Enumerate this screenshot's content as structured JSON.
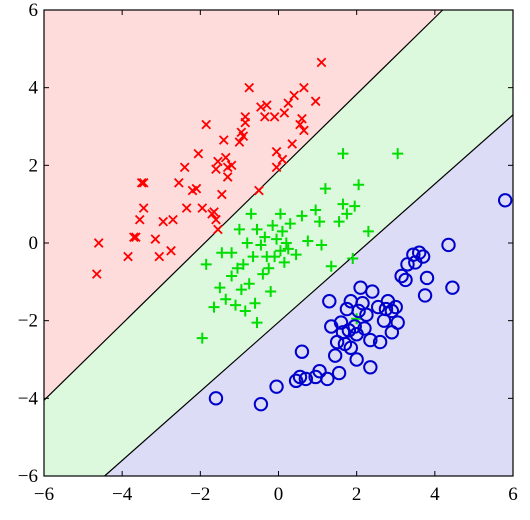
{
  "chart_data": {
    "type": "scatter",
    "title": "",
    "xlabel": "",
    "ylabel": "",
    "xlim": [
      -6,
      6
    ],
    "ylim": [
      -6,
      6
    ],
    "xticks": [
      "−6",
      "−4",
      "−2",
      "0",
      "2",
      "4",
      "6"
    ],
    "yticks": [
      "−6",
      "−4",
      "−2",
      "0",
      "2",
      "4",
      "6"
    ],
    "grid": false,
    "decision_boundaries": [
      {
        "x1": -6,
        "y1": -4.05,
        "x2": 4.2,
        "y2": 6
      },
      {
        "x1": -4.45,
        "y1": -6,
        "x2": 6,
        "y2": 3.3
      }
    ],
    "regions": [
      {
        "color": "#ffdcdc"
      },
      {
        "color": "#ddf9dd"
      },
      {
        "color": "#dcdcf7"
      }
    ],
    "series": [
      {
        "marker": "x",
        "color": "#ff0000",
        "points": [
          [
            -4.6,
            0.0
          ],
          [
            -4.65,
            -0.8
          ],
          [
            -3.85,
            -0.35
          ],
          [
            -3.7,
            0.15
          ],
          [
            -3.65,
            0.15
          ],
          [
            -3.55,
            0.6
          ],
          [
            -3.45,
            0.9
          ],
          [
            -3.5,
            1.55
          ],
          [
            -3.45,
            1.55
          ],
          [
            -3.15,
            0.1
          ],
          [
            -3.05,
            -0.35
          ],
          [
            -2.95,
            0.55
          ],
          [
            -2.75,
            -0.2
          ],
          [
            -2.7,
            0.6
          ],
          [
            -2.55,
            1.55
          ],
          [
            -2.4,
            1.95
          ],
          [
            -2.35,
            0.9
          ],
          [
            -2.2,
            1.35
          ],
          [
            -2.1,
            1.4
          ],
          [
            -2.05,
            2.3
          ],
          [
            -1.95,
            0.9
          ],
          [
            -1.85,
            3.05
          ],
          [
            -1.7,
            0.75
          ],
          [
            -1.65,
            0.8
          ],
          [
            -1.6,
            0.6
          ],
          [
            -1.6,
            1.9
          ],
          [
            -1.55,
            2.1
          ],
          [
            -1.55,
            0.35
          ],
          [
            -1.45,
            1.25
          ],
          [
            -1.4,
            2.65
          ],
          [
            -1.35,
            2.2
          ],
          [
            -1.3,
            1.95
          ],
          [
            -1.3,
            1.7
          ],
          [
            -1.2,
            2.0
          ],
          [
            -1.0,
            2.6
          ],
          [
            -0.95,
            2.85
          ],
          [
            -0.9,
            2.75
          ],
          [
            -0.85,
            3.25
          ],
          [
            -0.85,
            3.1
          ],
          [
            -0.75,
            4.0
          ],
          [
            -0.5,
            1.35
          ],
          [
            -0.45,
            3.5
          ],
          [
            -0.3,
            3.55
          ],
          [
            -0.35,
            3.25
          ],
          [
            -0.1,
            3.25
          ],
          [
            -0.05,
            2.35
          ],
          [
            -0.05,
            1.95
          ],
          [
            0.1,
            2.15
          ],
          [
            0.15,
            3.35
          ],
          [
            0.25,
            3.6
          ],
          [
            0.35,
            2.55
          ],
          [
            0.4,
            3.8
          ],
          [
            0.55,
            3.05
          ],
          [
            0.6,
            3.2
          ],
          [
            0.65,
            4.0
          ],
          [
            0.65,
            2.9
          ],
          [
            0.95,
            3.65
          ],
          [
            1.1,
            4.65
          ]
        ]
      },
      {
        "marker": "+",
        "color": "#00dd00",
        "points": [
          [
            -1.95,
            -2.45
          ],
          [
            -1.85,
            -0.55
          ],
          [
            -1.65,
            -1.65
          ],
          [
            -1.5,
            -1.15
          ],
          [
            -1.45,
            -0.25
          ],
          [
            -1.35,
            -1.45
          ],
          [
            -1.2,
            -0.85
          ],
          [
            -1.2,
            -0.25
          ],
          [
            -1.1,
            -1.6
          ],
          [
            -1.05,
            -0.65
          ],
          [
            -1.0,
            0.35
          ],
          [
            -0.95,
            -1.2
          ],
          [
            -0.9,
            -0.55
          ],
          [
            -0.85,
            -1.75
          ],
          [
            -0.8,
            0.0
          ],
          [
            -0.75,
            -1.05
          ],
          [
            -0.7,
            0.75
          ],
          [
            -0.65,
            -0.35
          ],
          [
            -0.6,
            -1.55
          ],
          [
            -0.55,
            -2.05
          ],
          [
            -0.55,
            0.35
          ],
          [
            -0.45,
            -0.05
          ],
          [
            -0.4,
            -0.8
          ],
          [
            -0.35,
            0.15
          ],
          [
            -0.3,
            -0.35
          ],
          [
            -0.25,
            -0.65
          ],
          [
            -0.2,
            -1.25
          ],
          [
            -0.15,
            0.45
          ],
          [
            -0.1,
            -0.35
          ],
          [
            -0.05,
            0.1
          ],
          [
            0.05,
            -0.2
          ],
          [
            0.05,
            0.75
          ],
          [
            0.1,
            0.3
          ],
          [
            0.15,
            -0.5
          ],
          [
            0.2,
            0.0
          ],
          [
            0.25,
            -0.15
          ],
          [
            0.3,
            0.5
          ],
          [
            0.45,
            -0.3
          ],
          [
            0.6,
            0.7
          ],
          [
            0.75,
            0.05
          ],
          [
            0.95,
            0.85
          ],
          [
            1.05,
            0.55
          ],
          [
            1.1,
            -0.05
          ],
          [
            1.2,
            1.4
          ],
          [
            1.35,
            -0.6
          ],
          [
            1.55,
            0.55
          ],
          [
            1.65,
            1.0
          ],
          [
            1.65,
            2.3
          ],
          [
            1.75,
            0.75
          ],
          [
            1.9,
            -0.4
          ],
          [
            1.95,
            0.95
          ],
          [
            2.05,
            1.5
          ],
          [
            2.0,
            -1.95
          ],
          [
            2.3,
            0.3
          ],
          [
            3.05,
            2.3
          ]
        ]
      },
      {
        "marker": "o",
        "color": "#0000cc",
        "points": [
          [
            -1.6,
            -4.0
          ],
          [
            -0.45,
            -4.15
          ],
          [
            -0.05,
            -3.7
          ],
          [
            0.45,
            -3.55
          ],
          [
            0.55,
            -3.45
          ],
          [
            0.6,
            -2.8
          ],
          [
            0.7,
            -3.5
          ],
          [
            0.95,
            -3.45
          ],
          [
            1.05,
            -3.3
          ],
          [
            1.25,
            -3.5
          ],
          [
            1.3,
            -1.5
          ],
          [
            1.35,
            -2.15
          ],
          [
            1.45,
            -2.9
          ],
          [
            1.5,
            -2.55
          ],
          [
            1.55,
            -3.35
          ],
          [
            1.6,
            -2.05
          ],
          [
            1.65,
            -2.3
          ],
          [
            1.7,
            -2.6
          ],
          [
            1.75,
            -1.7
          ],
          [
            1.8,
            -2.25
          ],
          [
            1.85,
            -1.5
          ],
          [
            1.85,
            -2.7
          ],
          [
            1.95,
            -2.15
          ],
          [
            2.0,
            -3.0
          ],
          [
            2.0,
            -2.35
          ],
          [
            2.05,
            -1.75
          ],
          [
            2.1,
            -1.15
          ],
          [
            2.15,
            -1.55
          ],
          [
            2.2,
            -2.2
          ],
          [
            2.25,
            -1.85
          ],
          [
            2.35,
            -2.5
          ],
          [
            2.35,
            -3.2
          ],
          [
            2.4,
            -1.25
          ],
          [
            2.55,
            -1.65
          ],
          [
            2.6,
            -2.55
          ],
          [
            2.7,
            -2.0
          ],
          [
            2.75,
            -1.7
          ],
          [
            2.8,
            -1.5
          ],
          [
            2.9,
            -1.75
          ],
          [
            2.9,
            -2.3
          ],
          [
            3.0,
            -1.65
          ],
          [
            3.05,
            -2.05
          ],
          [
            3.15,
            -0.85
          ],
          [
            3.25,
            -0.95
          ],
          [
            3.3,
            -0.55
          ],
          [
            3.45,
            -0.3
          ],
          [
            3.5,
            -0.5
          ],
          [
            3.6,
            -0.25
          ],
          [
            3.7,
            -0.35
          ],
          [
            3.75,
            -1.35
          ],
          [
            3.8,
            -0.9
          ],
          [
            4.35,
            -0.05
          ],
          [
            4.45,
            -1.15
          ],
          [
            5.8,
            1.1
          ]
        ]
      }
    ]
  }
}
